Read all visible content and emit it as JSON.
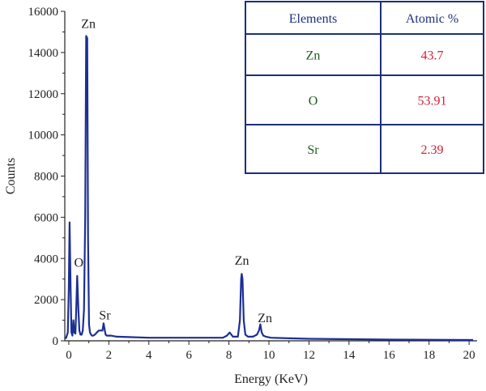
{
  "chart_data": {
    "type": "line",
    "xlabel": "Energy (KeV)",
    "ylabel": "Counts",
    "xlim": [
      -0.2,
      20.4
    ],
    "ylim": [
      0,
      16000
    ],
    "x_ticks": [
      0,
      2,
      4,
      6,
      8,
      10,
      12,
      14,
      16,
      18,
      20
    ],
    "y_ticks": [
      0,
      2000,
      4000,
      6000,
      8000,
      10000,
      12000,
      14000,
      16000
    ],
    "grid": false,
    "series_color": "#1c2f96",
    "series": [
      {
        "x": [
          -0.15,
          -0.05,
          0.0,
          0.04,
          0.09,
          0.13,
          0.18,
          0.23,
          0.28,
          0.33,
          0.37,
          0.42,
          0.48,
          0.53,
          0.58,
          0.64,
          0.7,
          0.76,
          0.82,
          0.87,
          0.92,
          0.96,
          1.01,
          1.06,
          1.11,
          1.16,
          1.22,
          1.3,
          1.4,
          1.5,
          1.6,
          1.68,
          1.74,
          1.79,
          1.84,
          1.9,
          1.98,
          2.1,
          2.4,
          3.0,
          4.0,
          5.0,
          6.0,
          7.0,
          7.7,
          7.9,
          8.04,
          8.2,
          8.45,
          8.55,
          8.61,
          8.64,
          8.68,
          8.74,
          8.82,
          8.95,
          9.2,
          9.4,
          9.5,
          9.57,
          9.64,
          9.72,
          9.85,
          10.1,
          11.0,
          12.0,
          14.0,
          16.0,
          18.0,
          20.2
        ],
        "y": [
          100,
          400,
          2500,
          5750,
          2500,
          400,
          250,
          1000,
          400,
          350,
          1500,
          3150,
          1500,
          500,
          300,
          300,
          500,
          1500,
          6000,
          14800,
          14700,
          5000,
          800,
          400,
          300,
          250,
          250,
          300,
          400,
          500,
          500,
          500,
          850,
          550,
          300,
          250,
          250,
          250,
          200,
          180,
          150,
          150,
          150,
          150,
          150,
          250,
          400,
          200,
          200,
          1000,
          3000,
          3250,
          3000,
          1000,
          300,
          200,
          200,
          300,
          500,
          800,
          400,
          250,
          200,
          150,
          120,
          100,
          80,
          60,
          50,
          40
        ]
      }
    ],
    "annotations": [
      {
        "text": "Zn",
        "x": 0.98,
        "y": 15200
      },
      {
        "text": "O",
        "x": 0.5,
        "y": 3600
      },
      {
        "text": "Sr",
        "x": 1.8,
        "y": 1050
      },
      {
        "text": "Zn",
        "x": 8.65,
        "y": 3700
      },
      {
        "text": "Zn",
        "x": 9.8,
        "y": 900
      }
    ],
    "table": {
      "headers": [
        "Elements",
        "Atomic %"
      ],
      "rows": [
        {
          "element": "Zn",
          "value": "43.7"
        },
        {
          "element": "O",
          "value": "53.91"
        },
        {
          "element": "Sr",
          "value": "2.39"
        }
      ]
    }
  }
}
